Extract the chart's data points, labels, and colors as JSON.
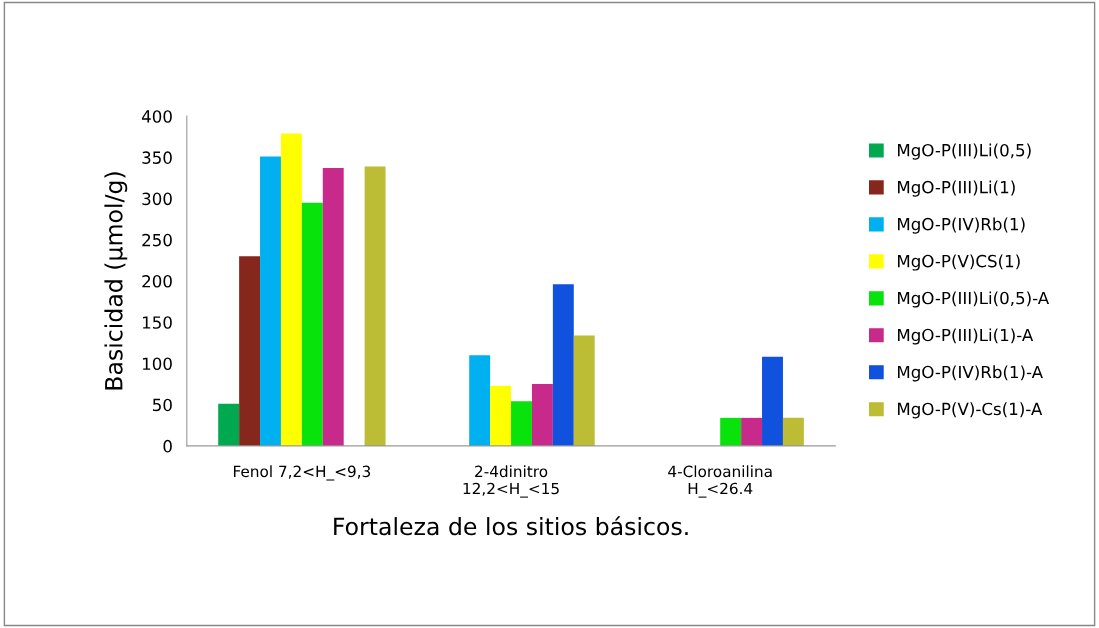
{
  "chart_data": {
    "type": "bar",
    "xlabel": "Fortaleza de los sitios básicos.",
    "ylabel": "Basicidad (µmol/g)",
    "categories": [
      "Fenol 7,2<H_<9,3",
      "2-4dinitro\n12,2<H_<15",
      "4-Cloroanilina\nH_<26.4"
    ],
    "ylim": [
      0,
      400
    ],
    "yticks": [
      0,
      50,
      100,
      150,
      200,
      250,
      300,
      350,
      400
    ],
    "grid": false,
    "legend": "right",
    "series": [
      {
        "name": "MgO-P(III)Li(0,5)",
        "color": "#00a84f",
        "values": [
          51,
          null,
          null
        ]
      },
      {
        "name": "MgO-P(III)Li(1)",
        "color": "#85271c",
        "values": [
          230,
          null,
          null
        ]
      },
      {
        "name": "MgO-P(IV)Rb(1)",
        "color": "#00b0f0",
        "values": [
          351,
          110,
          null
        ]
      },
      {
        "name": "MgO-P(V)CS(1)",
        "color": "#ffff00",
        "values": [
          379,
          73,
          null
        ]
      },
      {
        "name": "MgO-P(III)Li(0,5)-A",
        "color": "#07e30b",
        "values": [
          295,
          54,
          34
        ]
      },
      {
        "name": "MgO-P(III)Li(1)-A",
        "color": "#c72a8a",
        "values": [
          337,
          75,
          34
        ]
      },
      {
        "name": "MgO-P(IV)Rb(1)-A",
        "color": "#1052dd",
        "values": [
          null,
          196,
          108
        ]
      },
      {
        "name": "MgO-P(V)-Cs(1)-A",
        "color": "#bcbc35",
        "values": [
          339,
          134,
          34
        ]
      }
    ]
  }
}
